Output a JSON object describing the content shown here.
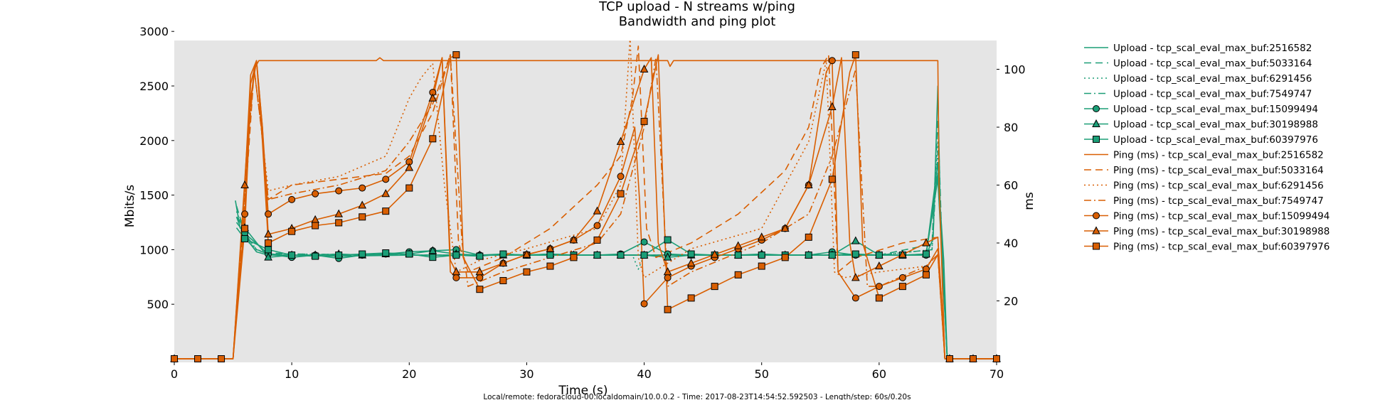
{
  "chart_data": {
    "type": "line",
    "title": "TCP upload - N streams w/ping",
    "subtitle": "Bandwidth and ping plot",
    "xlabel": "Time (s)",
    "ylabel": "Mbits/s",
    "y2label": "ms",
    "xlim": [
      0,
      70
    ],
    "ylim": [
      0,
      3000
    ],
    "y2lim": [
      0,
      110
    ],
    "xticks": [
      "0",
      "10",
      "20",
      "30",
      "40",
      "50",
      "60",
      "70"
    ],
    "yticks": [
      "500",
      "1000",
      "1500",
      "2000",
      "2500",
      "3000"
    ],
    "y2ticks": [
      "20",
      "40",
      "60",
      "80",
      "100"
    ],
    "grid": false,
    "background": "#e5e5e5",
    "legend_position": "right, outside plot",
    "footer": "Local/remote: fedoracloud-00.localdomain/10.0.0.2 - Time: 2017-08-23T14:54:52.592503 - Length/step: 60s/0.20s",
    "colors": {
      "upload": "#1b9e77",
      "ping": "#d95f02"
    },
    "upload_series": [
      {
        "name": "Upload - tcp_scal_eval_max_buf:2516582",
        "style": "solid",
        "marker": "none",
        "x": [
          5.2,
          5.6,
          6.0,
          6.5,
          7.0,
          8,
          10,
          14,
          20,
          30,
          39.5,
          40.5,
          50,
          57,
          58,
          64,
          64.6,
          65.0,
          65.2,
          65.5,
          65.8,
          70
        ],
        "y": [
          1450,
          1200,
          1150,
          1050,
          980,
          950,
          950,
          940,
          950,
          950,
          950,
          950,
          950,
          950,
          950,
          950,
          1100,
          2500,
          1400,
          900,
          0,
          0
        ]
      },
      {
        "name": "Upload - tcp_scal_eval_max_buf:5033164",
        "style": "dashed",
        "marker": "none",
        "x": [
          5.3,
          6,
          7,
          8,
          10,
          20,
          30,
          40,
          50,
          60,
          64.5,
          65.0,
          65.3,
          65.8,
          70
        ],
        "y": [
          1400,
          1150,
          1000,
          970,
          960,
          950,
          950,
          950,
          950,
          950,
          1050,
          2200,
          1200,
          0,
          0
        ]
      },
      {
        "name": "Upload - tcp_scal_eval_max_buf:6291456",
        "style": "dotted",
        "marker": "none",
        "x": [
          5.3,
          6,
          7,
          8,
          10,
          20,
          30,
          39,
          39.5,
          40,
          50,
          60,
          64.5,
          65.0,
          65.3,
          65.8,
          70
        ],
        "y": [
          1350,
          1150,
          1000,
          960,
          960,
          950,
          950,
          950,
          820,
          950,
          950,
          950,
          1000,
          2000,
          1100,
          0,
          0
        ]
      },
      {
        "name": "Upload - tcp_scal_eval_max_buf:7549747",
        "style": "dashdot",
        "marker": "none",
        "x": [
          5.3,
          6,
          7,
          8,
          10,
          20,
          30,
          40,
          50,
          60,
          64.5,
          65.0,
          65.3,
          65.8,
          70
        ],
        "y": [
          1300,
          1100,
          1000,
          960,
          950,
          950,
          950,
          950,
          950,
          950,
          1000,
          1900,
          1100,
          0,
          0
        ]
      },
      {
        "name": "Upload - tcp_scal_eval_max_buf:15099494",
        "style": "solid",
        "marker": "circle",
        "x": [
          5.3,
          6,
          8,
          10,
          12,
          14,
          16,
          18,
          20,
          22,
          24,
          26,
          28,
          30,
          32,
          34,
          36,
          38,
          40,
          42,
          44,
          46,
          48,
          50,
          52,
          54,
          56,
          58,
          60,
          62,
          64,
          65.0,
          65.8,
          66,
          68,
          70
        ],
        "y": [
          1250,
          1150,
          960,
          930,
          950,
          920,
          950,
          960,
          980,
          990,
          1000,
          950,
          960,
          950,
          960,
          950,
          950,
          960,
          1070,
          960,
          950,
          950,
          950,
          950,
          950,
          950,
          980,
          950,
          950,
          950,
          950,
          1800,
          0,
          0,
          0,
          0
        ]
      },
      {
        "name": "Upload - tcp_scal_eval_max_buf:30198988",
        "style": "solid",
        "marker": "triangle",
        "x": [
          5.3,
          6,
          8,
          10,
          12,
          14,
          16,
          18,
          20,
          22,
          24,
          26,
          28,
          30,
          32,
          34,
          36,
          38,
          40,
          42,
          44,
          46,
          48,
          50,
          52,
          54,
          56,
          58,
          60,
          62,
          64,
          65.0,
          65.8,
          66,
          68,
          70
        ],
        "y": [
          1300,
          1200,
          930,
          950,
          950,
          960,
          950,
          960,
          960,
          990,
          960,
          950,
          950,
          950,
          960,
          950,
          950,
          950,
          950,
          930,
          950,
          950,
          950,
          960,
          950,
          950,
          950,
          1080,
          950,
          950,
          960,
          1700,
          0,
          0,
          0,
          0
        ]
      },
      {
        "name": "Upload - tcp_scal_eval_max_buf:60397976",
        "style": "solid",
        "marker": "square",
        "x": [
          5.3,
          6,
          8,
          10,
          12,
          14,
          16,
          18,
          20,
          22,
          24,
          26,
          28,
          30,
          32,
          34,
          36,
          38,
          40,
          42,
          44,
          46,
          48,
          50,
          52,
          54,
          56,
          58,
          60,
          62,
          64,
          65.0,
          65.8,
          66,
          68,
          70
        ],
        "y": [
          1200,
          1100,
          1000,
          950,
          940,
          950,
          960,
          970,
          960,
          930,
          950,
          940,
          960,
          950,
          950,
          950,
          950,
          950,
          950,
          1090,
          960,
          950,
          950,
          950,
          950,
          950,
          950,
          960,
          950,
          950,
          960,
          1650,
          0,
          0,
          0,
          0
        ]
      }
    ],
    "ping_series": [
      {
        "name": "Ping (ms) - tcp_scal_eval_max_buf:2516582",
        "style": "solid",
        "marker": "none",
        "x": [
          0,
          5,
          6.3,
          6.8,
          7.2,
          7.6,
          8,
          17.2,
          17.5,
          17.8,
          42,
          42.2,
          42.5,
          65,
          65.1,
          65.6,
          70
        ],
        "y": [
          0,
          0,
          80,
          100,
          103,
          103,
          103,
          103,
          104,
          103,
          103,
          101,
          103,
          103,
          60,
          0,
          0
        ]
      },
      {
        "name": "Ping (ms) - tcp_scal_eval_max_buf:5033164",
        "style": "dashed",
        "marker": "none",
        "x": [
          0,
          5,
          6.3,
          6.8,
          7.4,
          8,
          10,
          14,
          18,
          20,
          22,
          23.5,
          24.2,
          25,
          28,
          32,
          36,
          38,
          39,
          39.5,
          40.2,
          41,
          44,
          48,
          52,
          54,
          55,
          55.7,
          56.5,
          58,
          62,
          65,
          65.6,
          70
        ],
        "y": [
          0,
          0,
          70,
          100,
          80,
          55,
          60,
          62,
          64,
          70,
          85,
          105,
          40,
          30,
          35,
          45,
          60,
          70,
          90,
          108,
          45,
          35,
          40,
          50,
          65,
          80,
          100,
          105,
          30,
          35,
          40,
          42,
          0,
          0
        ]
      },
      {
        "name": "Ping (ms) - tcp_scal_eval_max_buf:6291456",
        "style": "dotted",
        "marker": "none",
        "x": [
          0,
          5,
          6.3,
          6.8,
          7.4,
          8,
          10,
          14,
          18,
          20,
          21,
          22,
          23,
          24,
          26,
          30,
          36,
          38,
          38.8,
          39.5,
          40,
          44,
          50,
          54,
          55.5,
          56.2,
          57,
          60,
          64,
          65,
          65.6,
          70
        ],
        "y": [
          0,
          0,
          75,
          100,
          80,
          58,
          60,
          63,
          70,
          90,
          97,
          102,
          60,
          30,
          34,
          38,
          45,
          60,
          111,
          35,
          28,
          38,
          45,
          75,
          103,
          30,
          28,
          30,
          32,
          36,
          0,
          0
        ]
      },
      {
        "name": "Ping (ms) - tcp_scal_eval_max_buf:7549747",
        "style": "dashdot",
        "marker": "none",
        "x": [
          0,
          5,
          6.3,
          6.8,
          7.4,
          8,
          10,
          14,
          18,
          20,
          22,
          23.5,
          24.5,
          25,
          28,
          32,
          36,
          38,
          40,
          41,
          42,
          44,
          50,
          54,
          56,
          58,
          59,
          60,
          64,
          65,
          65.6,
          70
        ],
        "y": [
          0,
          0,
          75,
          100,
          80,
          55,
          57,
          60,
          65,
          75,
          88,
          105,
          40,
          25,
          30,
          35,
          40,
          50,
          80,
          104,
          25,
          30,
          40,
          50,
          70,
          100,
          25,
          25,
          32,
          36,
          0,
          0
        ]
      },
      {
        "name": "Ping (ms) - tcp_scal_eval_max_buf:15099494",
        "style": "solid",
        "marker": "circle",
        "x": [
          0,
          2,
          4,
          5,
          6,
          6.5,
          7,
          7.5,
          8,
          10,
          12,
          14,
          16,
          18,
          20,
          22,
          22.8,
          23.5,
          24,
          26,
          28,
          30,
          32,
          34,
          36,
          38,
          39.2,
          39.6,
          40,
          42,
          44,
          46,
          48,
          50,
          52,
          54,
          55.5,
          56,
          56.5,
          58,
          60,
          62,
          64,
          65,
          65.6,
          66,
          68,
          70
        ],
        "y": [
          0,
          0,
          0,
          0,
          50,
          95,
          103,
          80,
          50,
          55,
          57,
          58,
          59,
          62,
          68,
          92,
          104,
          30,
          28,
          28,
          33,
          36,
          38,
          41,
          46,
          63,
          80,
          55,
          19,
          28,
          32,
          35,
          38,
          41,
          45,
          60,
          99,
          103,
          30,
          21,
          25,
          28,
          31,
          38,
          0,
          0,
          0,
          0
        ]
      },
      {
        "name": "Ping (ms) - tcp_scal_eval_max_buf:30198988",
        "style": "solid",
        "marker": "triangle",
        "x": [
          0,
          5,
          6,
          6.5,
          7,
          7.5,
          8,
          10,
          12,
          14,
          16,
          18,
          20,
          22,
          22.8,
          23.5,
          24,
          26,
          28,
          30,
          32,
          34,
          36,
          38,
          40,
          40.6,
          41.2,
          42,
          44,
          46,
          48,
          50,
          52,
          54,
          56,
          56.8,
          57.5,
          58,
          60,
          62,
          64,
          65,
          65.6,
          70
        ],
        "y": [
          0,
          0,
          60,
          98,
          103,
          80,
          43,
          45,
          48,
          50,
          53,
          57,
          66,
          90,
          104,
          34,
          30,
          30,
          33,
          36,
          38,
          41,
          51,
          75,
          100,
          104,
          40,
          30,
          33,
          36,
          39,
          42,
          45,
          60,
          87,
          104,
          40,
          28,
          32,
          36,
          40,
          42,
          0,
          0
        ]
      },
      {
        "name": "Ping (ms) - tcp_scal_eval_max_buf:60397976",
        "style": "solid",
        "marker": "square",
        "x": [
          0,
          2,
          4,
          5,
          6,
          6.5,
          7,
          7.5,
          8,
          10,
          12,
          14,
          16,
          18,
          20,
          22,
          23.5,
          24,
          24.6,
          26,
          28,
          30,
          32,
          34,
          36,
          38,
          40,
          41.2,
          41.6,
          42,
          44,
          46,
          48,
          50,
          52,
          54,
          56,
          57.5,
          58,
          58.6,
          60,
          62,
          64,
          65,
          65.6,
          66,
          68,
          70
        ],
        "y": [
          0,
          0,
          0,
          0,
          45,
          90,
          103,
          75,
          40,
          44,
          46,
          47,
          49,
          51,
          59,
          76,
          104,
          105,
          35,
          24,
          27,
          30,
          32,
          35,
          41,
          57,
          82,
          105,
          60,
          17,
          21,
          25,
          29,
          32,
          35,
          42,
          62,
          99,
          105,
          40,
          21,
          25,
          29,
          36,
          0,
          0,
          0,
          0
        ]
      }
    ]
  }
}
